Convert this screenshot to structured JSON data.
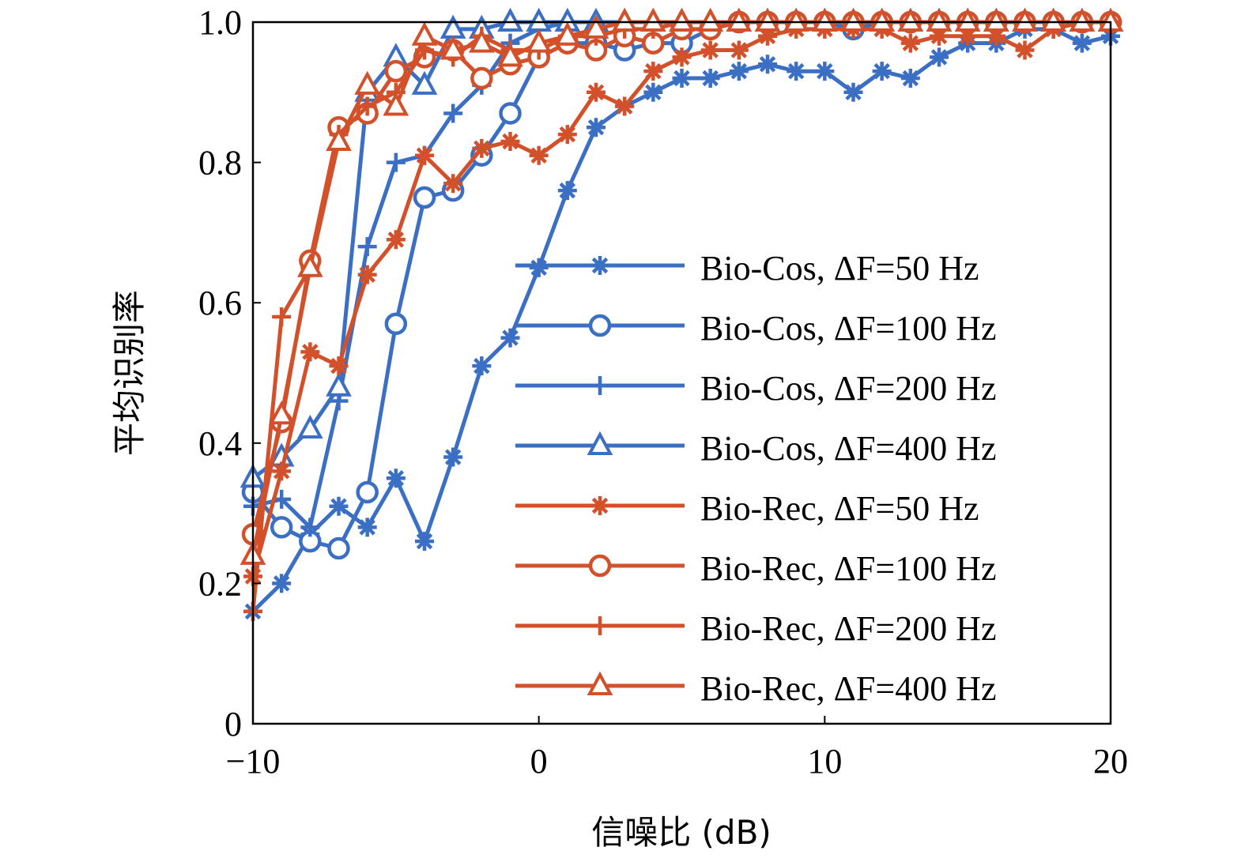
{
  "chart_data": {
    "type": "line",
    "title": "",
    "xlabel": "信噪比 (dB)",
    "ylabel": "平均识别率",
    "xlim": [
      -10,
      20
    ],
    "ylim": [
      0,
      1.0
    ],
    "x_ticks": [
      -10,
      0,
      10,
      20
    ],
    "x_tick_labels": [
      "−10",
      "0",
      "10",
      "20"
    ],
    "y_ticks": [
      0,
      0.2,
      0.4,
      0.6,
      0.8,
      1.0
    ],
    "y_tick_labels": [
      "0",
      "0.2",
      "0.4",
      "0.6",
      "0.8",
      "1.0"
    ],
    "grid": false,
    "legend_position": "right-center",
    "colors": {
      "bio_cos": "#3a6fc4",
      "bio_rec": "#d2502a"
    },
    "x": [
      -10,
      -9,
      -8,
      -7,
      -6,
      -5,
      -4,
      -3,
      -2,
      -1,
      0,
      1,
      2,
      3,
      4,
      5,
      6,
      7,
      8,
      9,
      10,
      11,
      12,
      13,
      14,
      15,
      16,
      17,
      18,
      19,
      20
    ],
    "series": [
      {
        "name": "Bio-Cos, ΔF=50 Hz",
        "color": "#3a6fc4",
        "marker": "asterisk",
        "values": [
          0.16,
          0.2,
          0.27,
          0.31,
          0.28,
          0.35,
          0.26,
          0.38,
          0.51,
          0.55,
          0.65,
          0.76,
          0.85,
          0.88,
          0.9,
          0.92,
          0.92,
          0.93,
          0.94,
          0.93,
          0.93,
          0.9,
          0.93,
          0.92,
          0.95,
          0.97,
          0.97,
          0.99,
          0.99,
          0.97,
          0.98
        ]
      },
      {
        "name": "Bio-Cos, ΔF=100 Hz",
        "color": "#3a6fc4",
        "marker": "circle",
        "values": [
          0.33,
          0.28,
          0.26,
          0.25,
          0.33,
          0.57,
          0.75,
          0.76,
          0.81,
          0.87,
          0.95,
          0.97,
          0.97,
          0.96,
          0.97,
          0.97,
          0.99,
          1.0,
          1.0,
          1.0,
          1.0,
          0.99,
          1.0,
          1.0,
          1.0,
          1.0,
          1.0,
          1.0,
          1.0,
          1.0,
          1.0
        ]
      },
      {
        "name": "Bio-Cos, ΔF=200 Hz",
        "color": "#3a6fc4",
        "marker": "plus",
        "values": [
          0.31,
          0.32,
          0.28,
          0.46,
          0.68,
          0.8,
          0.81,
          0.87,
          0.91,
          0.97,
          0.99,
          1.0,
          1.0,
          1.0,
          1.0,
          1.0,
          1.0,
          1.0,
          1.0,
          1.0,
          1.0,
          1.0,
          1.0,
          1.0,
          1.0,
          1.0,
          1.0,
          1.0,
          1.0,
          1.0,
          1.0
        ]
      },
      {
        "name": "Bio-Cos, ΔF=400 Hz",
        "color": "#3a6fc4",
        "marker": "triangle",
        "values": [
          0.35,
          0.38,
          0.42,
          0.48,
          0.9,
          0.95,
          0.91,
          0.99,
          0.99,
          1.0,
          1.0,
          1.0,
          1.0,
          1.0,
          1.0,
          1.0,
          1.0,
          1.0,
          1.0,
          1.0,
          1.0,
          1.0,
          1.0,
          1.0,
          1.0,
          1.0,
          1.0,
          1.0,
          1.0,
          1.0,
          1.0
        ]
      },
      {
        "name": "Bio-Rec, ΔF=50 Hz",
        "color": "#d2502a",
        "marker": "asterisk",
        "values": [
          0.21,
          0.36,
          0.53,
          0.51,
          0.64,
          0.69,
          0.81,
          0.77,
          0.82,
          0.83,
          0.81,
          0.84,
          0.9,
          0.88,
          0.93,
          0.95,
          0.96,
          0.96,
          0.98,
          0.99,
          0.99,
          0.99,
          0.99,
          0.97,
          0.98,
          0.98,
          0.98,
          0.96,
          0.99,
          1.0,
          1.0
        ]
      },
      {
        "name": "Bio-Rec, ΔF=100 Hz",
        "color": "#d2502a",
        "marker": "circle",
        "values": [
          0.27,
          0.43,
          0.66,
          0.85,
          0.87,
          0.93,
          0.95,
          0.96,
          0.92,
          0.94,
          0.95,
          0.97,
          0.96,
          0.98,
          0.97,
          0.99,
          0.99,
          1.0,
          1.0,
          1.0,
          1.0,
          1.0,
          1.0,
          1.0,
          1.0,
          1.0,
          1.0,
          1.0,
          1.0,
          1.0,
          1.0
        ]
      },
      {
        "name": "Bio-Rec, ΔF=200 Hz",
        "color": "#d2502a",
        "marker": "plus",
        "values": [
          0.16,
          0.58,
          0.65,
          0.84,
          0.88,
          0.9,
          0.96,
          0.95,
          0.98,
          0.96,
          0.96,
          0.98,
          0.98,
          0.99,
          0.99,
          1.0,
          1.0,
          1.0,
          1.0,
          1.0,
          1.0,
          1.0,
          1.0,
          1.0,
          1.0,
          1.0,
          1.0,
          1.0,
          1.0,
          1.0,
          1.0
        ]
      },
      {
        "name": "Bio-Rec, ΔF=400 Hz",
        "color": "#d2502a",
        "marker": "triangle",
        "values": [
          0.24,
          0.44,
          0.65,
          0.83,
          0.91,
          0.88,
          0.98,
          0.96,
          0.97,
          0.95,
          0.97,
          0.98,
          0.99,
          1.0,
          1.0,
          1.0,
          1.0,
          1.0,
          1.0,
          1.0,
          1.0,
          1.0,
          1.0,
          1.0,
          1.0,
          1.0,
          1.0,
          1.0,
          1.0,
          1.0,
          1.0
        ]
      }
    ]
  }
}
